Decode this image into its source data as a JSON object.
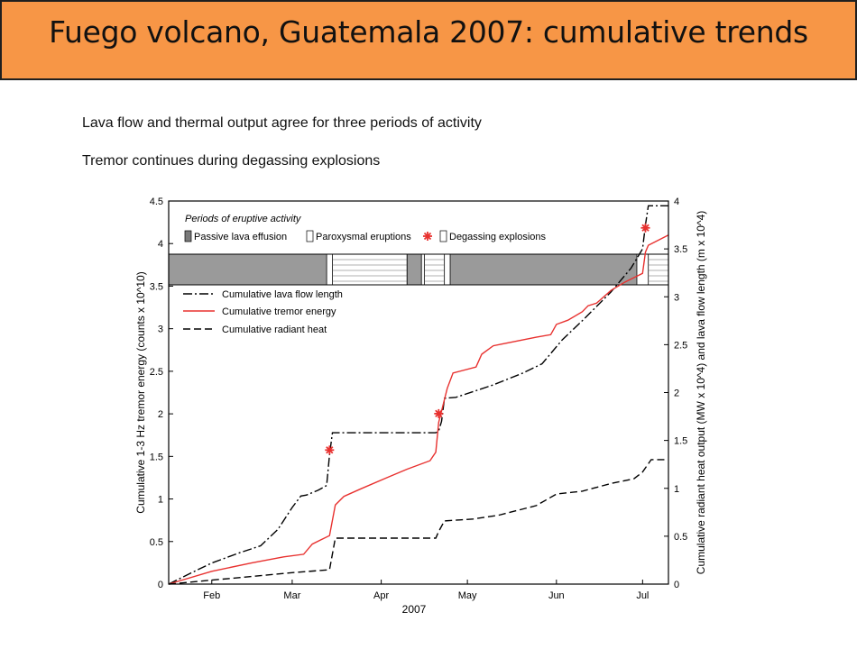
{
  "slide": {
    "title": "Fuego volcano, Guatemala 2007:  cumulative trends",
    "bullets": [
      "Lava flow and thermal output agree for three periods of activity",
      "Tremor continues during degassing explosions"
    ]
  },
  "chart_data": {
    "type": "line",
    "xlabel": "2007",
    "x_ticks": [
      "Feb",
      "Mar",
      "Apr",
      "May",
      "Jun",
      "Jul"
    ],
    "ylabel_left": "Cumulative 1-3 Hz tremor energy (counts x 10^10)",
    "ylabel_right": "Cumulative radiant heat output (MW x 10^4) and lava flow length (m x 10^4)",
    "ylim_left": [
      0,
      4.5
    ],
    "ylim_right": [
      0,
      4
    ],
    "left_ticks": [
      "0",
      "0.5",
      "1",
      "1.5",
      "2",
      "2.5",
      "3",
      "3.5",
      "4",
      "4.5"
    ],
    "right_ticks": [
      "0",
      "0.5",
      "1",
      "1.5",
      "2",
      "2.5",
      "3",
      "3.5",
      "4"
    ],
    "legend_periods_title": "Periods of eruptive activity",
    "legend_periods": [
      "Passive lava effusion",
      "Paroxysmal eruptions",
      "Degassing explosions"
    ],
    "series": [
      {
        "name": "Cumulative lava flow length",
        "axis": "right",
        "color": "#000000",
        "style": "dashdot",
        "points": [
          [
            "Jan 17",
            0
          ],
          [
            "Jan 25",
            0.12
          ],
          [
            "Feb 1",
            0.22
          ],
          [
            "Feb 10",
            0.32
          ],
          [
            "Feb 18",
            0.4
          ],
          [
            "Feb 24",
            0.57
          ],
          [
            "Mar 1",
            0.8
          ],
          [
            "Mar 4",
            0.92
          ],
          [
            "Mar 6",
            0.93
          ],
          [
            "Mar 10",
            0.98
          ],
          [
            "Mar 13",
            1.03
          ],
          [
            "Mar 14",
            1.35
          ],
          [
            "Mar 15",
            1.58
          ],
          [
            "Apr 20",
            1.58
          ],
          [
            "Apr 21",
            1.6
          ],
          [
            "Apr 22",
            1.7
          ],
          [
            "Apr 23",
            1.94
          ],
          [
            "Apr 27",
            1.95
          ],
          [
            "May 10",
            2.08
          ],
          [
            "May 20",
            2.2
          ],
          [
            "May 27",
            2.3
          ],
          [
            "Jun 3",
            2.55
          ],
          [
            "Jun 10",
            2.75
          ],
          [
            "Jun 20",
            3.05
          ],
          [
            "Jun 27",
            3.3
          ],
          [
            "Jul 1",
            3.5
          ],
          [
            "Jul 2",
            3.75
          ],
          [
            "Jul 3",
            3.95
          ],
          [
            "Jul 10",
            3.95
          ]
        ]
      },
      {
        "name": "Cumulative tremor energy",
        "axis": "left",
        "color": "#E8312F",
        "style": "solid",
        "points": [
          [
            "Jan 17",
            0
          ],
          [
            "Feb 1",
            0.15
          ],
          [
            "Feb 15",
            0.25
          ],
          [
            "Feb 26",
            0.32
          ],
          [
            "Mar 5",
            0.35
          ],
          [
            "Mar 8",
            0.47
          ],
          [
            "Mar 11",
            0.52
          ],
          [
            "Mar 14",
            0.57
          ],
          [
            "Mar 16",
            0.93
          ],
          [
            "Mar 19",
            1.03
          ],
          [
            "Mar 25",
            1.12
          ],
          [
            "Apr 3",
            1.25
          ],
          [
            "Apr 10",
            1.35
          ],
          [
            "Apr 18",
            1.45
          ],
          [
            "Apr 20",
            1.55
          ],
          [
            "Apr 21",
            1.9
          ],
          [
            "Apr 24",
            2.3
          ],
          [
            "Apr 26",
            2.48
          ],
          [
            "May 4",
            2.55
          ],
          [
            "May 6",
            2.7
          ],
          [
            "May 10",
            2.8
          ],
          [
            "May 25",
            2.9
          ],
          [
            "May 30",
            2.93
          ],
          [
            "Jun 1",
            3.05
          ],
          [
            "Jun 5",
            3.1
          ],
          [
            "Jun 10",
            3.2
          ],
          [
            "Jun 12",
            3.27
          ],
          [
            "Jun 15",
            3.3
          ],
          [
            "Jun 20",
            3.45
          ],
          [
            "Jun 25",
            3.55
          ],
          [
            "Jul 1",
            3.65
          ],
          [
            "Jul 2",
            3.9
          ],
          [
            "Jul 3",
            3.98
          ],
          [
            "Jul 10",
            4.1
          ]
        ]
      },
      {
        "name": "Cumulative radiant heat",
        "axis": "right",
        "color": "#000000",
        "style": "dashed",
        "points": [
          [
            "Jan 17",
            0
          ],
          [
            "Feb 15",
            0.08
          ],
          [
            "Mar 1",
            0.12
          ],
          [
            "Mar 14",
            0.15
          ],
          [
            "Mar 16",
            0.48
          ],
          [
            "Apr 20",
            0.48
          ],
          [
            "Apr 21",
            0.55
          ],
          [
            "Apr 23",
            0.66
          ],
          [
            "May 3",
            0.68
          ],
          [
            "May 12",
            0.72
          ],
          [
            "May 25",
            0.82
          ],
          [
            "Jun 1",
            0.94
          ],
          [
            "Jun 10",
            0.97
          ],
          [
            "Jun 20",
            1.05
          ],
          [
            "Jun 28",
            1.1
          ],
          [
            "Jul 1",
            1.17
          ],
          [
            "Jul 4",
            1.3
          ],
          [
            "Jul 10",
            1.3
          ]
        ]
      }
    ],
    "paroxysmal_eruptions": [
      "Mar 14",
      "Apr 21",
      "Jul 2"
    ],
    "activity_bands": [
      {
        "type": "Passive lava effusion",
        "start": "Jan 17",
        "end": "Mar 13"
      },
      {
        "type": "Degassing explosions",
        "start": "Mar 15",
        "end": "Apr 10"
      },
      {
        "type": "Passive lava effusion",
        "start": "Apr 10",
        "end": "Apr 15"
      },
      {
        "type": "Degassing explosions",
        "start": "Apr 16",
        "end": "Apr 23"
      },
      {
        "type": "Passive lava effusion",
        "start": "Apr 25",
        "end": "Jun 29"
      },
      {
        "type": "Degassing explosions",
        "start": "Jul 3",
        "end": "Jul 10"
      }
    ]
  }
}
